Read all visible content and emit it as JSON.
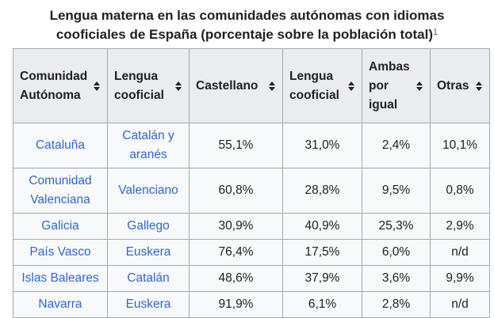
{
  "caption": {
    "line1": "Lengua materna en las comunidades autónomas con idiomas",
    "line2": "cooficiales de España (porcentaje sobre la población total)",
    "footnote": "1"
  },
  "columns": [
    {
      "label_lines": [
        "Comunidad",
        "Autónoma"
      ]
    },
    {
      "label_lines": [
        "Lengua",
        "cooficial"
      ]
    },
    {
      "label_lines": [
        "Castellano"
      ]
    },
    {
      "label_lines": [
        "Lengua",
        "cooficial"
      ]
    },
    {
      "label_lines": [
        "Ambas",
        "por",
        "igual"
      ]
    },
    {
      "label_lines": [
        "Otras"
      ]
    }
  ],
  "rows": [
    {
      "community_lines": [
        "Cataluña"
      ],
      "language_lines": [
        "Catalán y",
        "aranés"
      ],
      "castellano": "55,1%",
      "cooficial": "31,0%",
      "ambas": "2,4%",
      "otras": "10,1%"
    },
    {
      "community_lines": [
        "Comunidad",
        "Valenciana"
      ],
      "language_lines": [
        "Valenciano"
      ],
      "castellano": "60,8%",
      "cooficial": "28,8%",
      "ambas": "9,5%",
      "otras": "0,8%"
    },
    {
      "community_lines": [
        "Galicia"
      ],
      "language_lines": [
        "Gallego"
      ],
      "castellano": "30,9%",
      "cooficial": "40,9%",
      "ambas": "25,3%",
      "otras": "2,9%"
    },
    {
      "community_lines": [
        "País Vasco"
      ],
      "language_lines": [
        "Euskera"
      ],
      "castellano": "76,4%",
      "cooficial": "17,5%",
      "ambas": "6,0%",
      "otras": "n/d"
    },
    {
      "community_lines": [
        "Islas Baleares"
      ],
      "language_lines": [
        "Catalán"
      ],
      "castellano": "48,6%",
      "cooficial": "37,9%",
      "ambas": "3,6%",
      "otras": "9,9%"
    },
    {
      "community_lines": [
        "Navarra"
      ],
      "language_lines": [
        "Euskera"
      ],
      "castellano": "91,9%",
      "cooficial": "6,1%",
      "ambas": "2,8%",
      "otras": "n/d"
    }
  ]
}
